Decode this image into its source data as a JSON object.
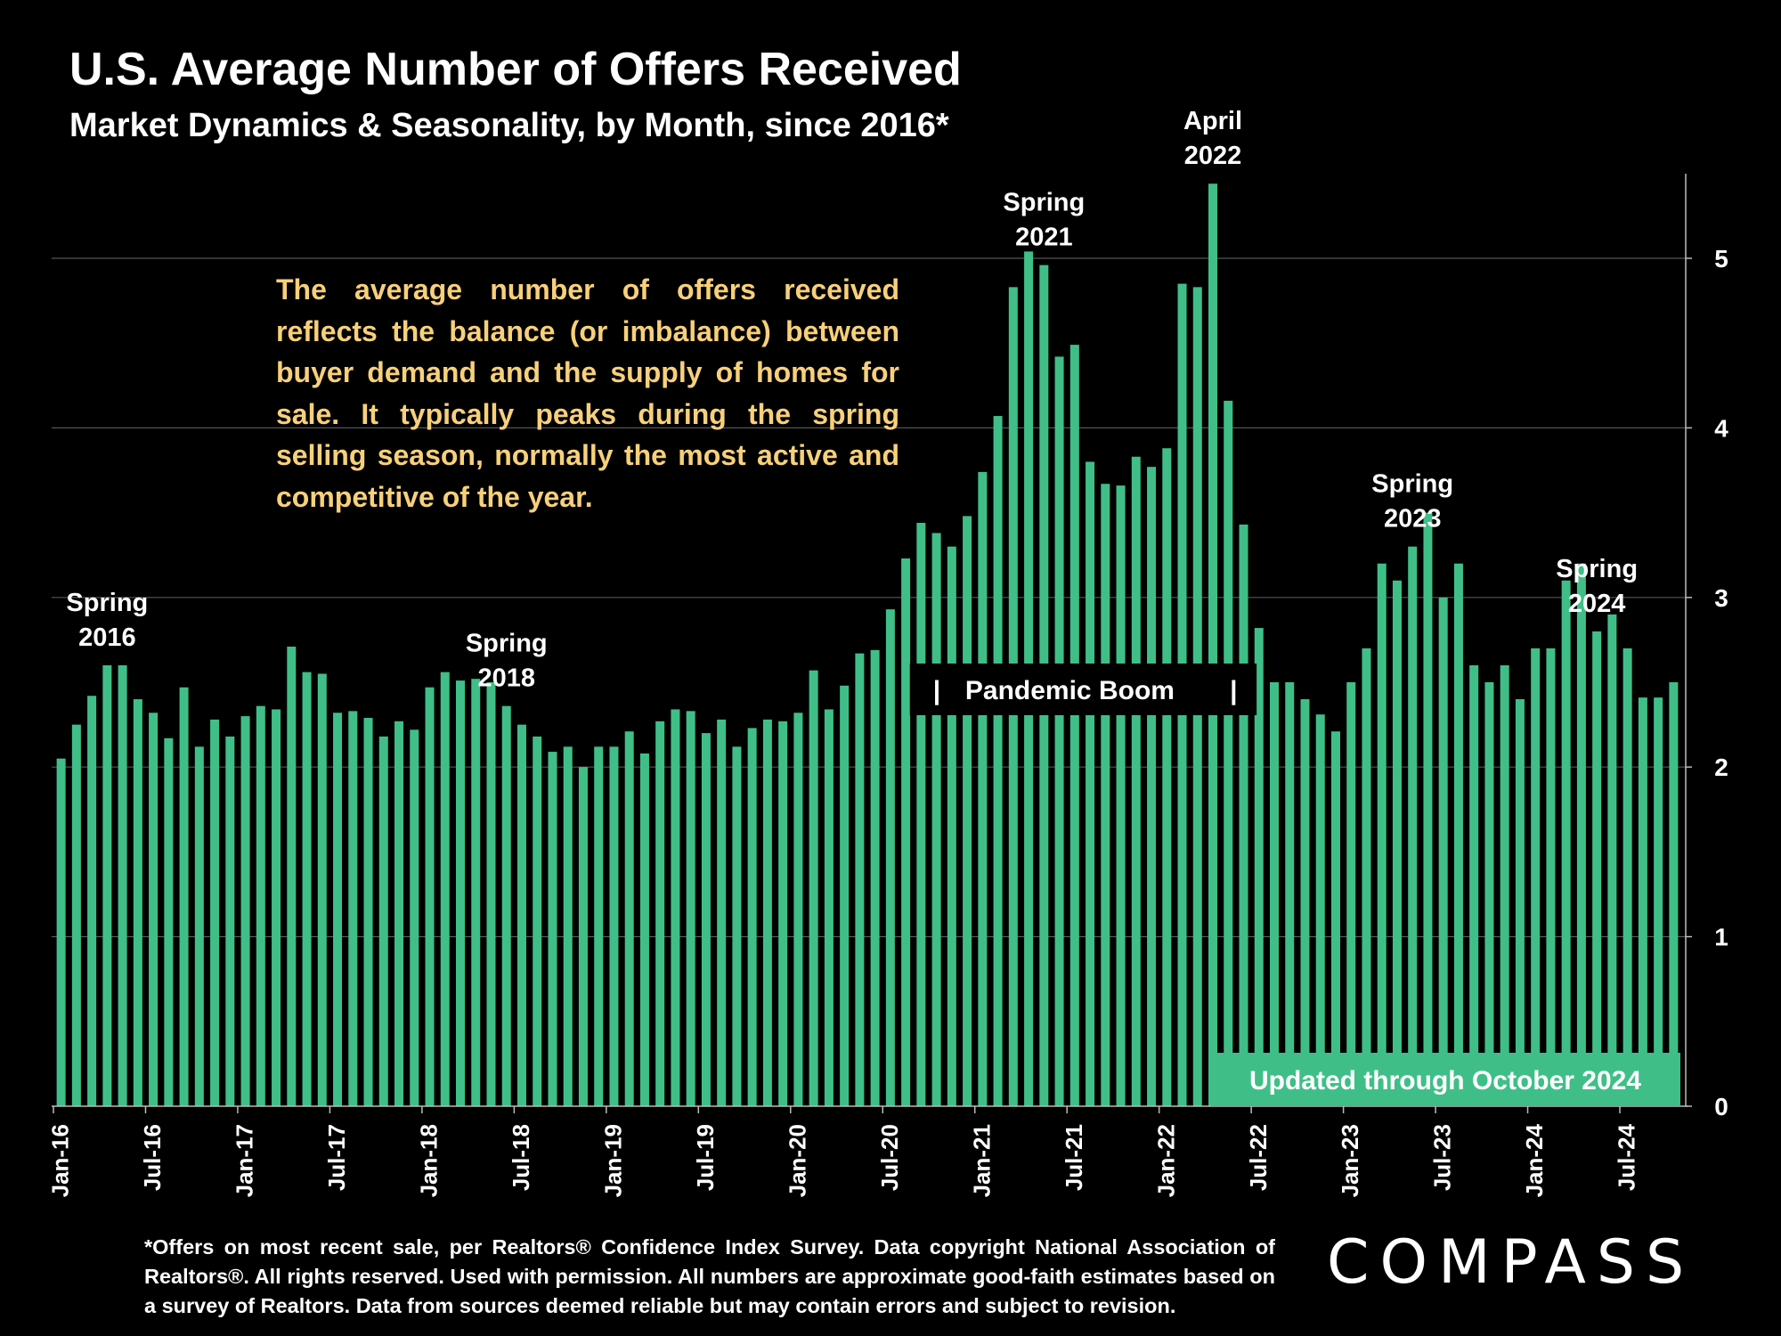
{
  "title": "U.S. Average Number of Offers Received",
  "subtitle": "Market Dynamics & Seasonality, by Month, since 2016*",
  "note": "The average number of offers received reflects the balance (or imbalance) between buyer demand and the supply of homes for sale. It typically peaks during the spring selling season, normally the most active and competitive of the year.",
  "footnote": "*Offers on most recent sale, per Realtors® Confidence Index Survey. Data copyright National Association of Realtors®. All rights reserved. Used with permission. All numbers are approximate good-faith estimates based on a survey of Realtors. Data from sources deemed reliable but may contain errors and subject to revision.",
  "logo": "COMPASS",
  "colors": {
    "bar": "#3fbf87",
    "background": "#000000",
    "note_text": "#f7d07a",
    "grid": "#555555"
  },
  "chart_data": {
    "type": "bar",
    "title": "U.S. Average Number of Offers Received",
    "subtitle": "Market Dynamics & Seasonality, by Month, since 2016*",
    "ylim": [
      0,
      5.5
    ],
    "y_ticks": [
      "0",
      "1",
      "2",
      "3",
      "4",
      "5"
    ],
    "y_axis_side": "right",
    "grid": true,
    "x_tick_labels": [
      "Jan-16",
      "Jul-16",
      "Jan-17",
      "Jul-17",
      "Jan-18",
      "Jul-18",
      "Jan-19",
      "Jul-19",
      "Jan-20",
      "Jul-20",
      "Jan-21",
      "Jul-21",
      "Jan-22",
      "Jul-22",
      "Jan-23",
      "Jul-23",
      "Jan-24",
      "Jul-24"
    ],
    "values": [
      2.05,
      2.25,
      2.42,
      2.6,
      2.6,
      2.4,
      2.32,
      2.17,
      2.47,
      2.12,
      2.28,
      2.18,
      2.3,
      2.36,
      2.34,
      2.71,
      2.56,
      2.55,
      2.32,
      2.33,
      2.29,
      2.18,
      2.27,
      2.22,
      2.47,
      2.56,
      2.51,
      2.52,
      2.5,
      2.36,
      2.25,
      2.18,
      2.09,
      2.12,
      2.0,
      2.12,
      2.12,
      2.21,
      2.08,
      2.27,
      2.34,
      2.33,
      2.2,
      2.28,
      2.12,
      2.23,
      2.28,
      2.27,
      2.32,
      2.57,
      2.34,
      2.48,
      2.67,
      2.69,
      2.93,
      3.23,
      3.44,
      3.38,
      3.3,
      3.48,
      3.74,
      4.07,
      4.83,
      5.04,
      4.96,
      4.42,
      4.49,
      3.8,
      3.67,
      3.66,
      3.83,
      3.77,
      3.88,
      4.85,
      4.83,
      5.44,
      4.16,
      3.43,
      2.82,
      2.5,
      2.5,
      2.4,
      2.31,
      2.21,
      2.5,
      2.7,
      3.2,
      3.1,
      3.3,
      3.5,
      3.0,
      3.2,
      2.6,
      2.5,
      2.6,
      2.4,
      2.7,
      2.7,
      3.1,
      3.2,
      2.8,
      2.9,
      2.7,
      2.41,
      2.41,
      2.5
    ],
    "annotations": [
      {
        "lines": [
          "Spring",
          "2016"
        ],
        "month": 3
      },
      {
        "lines": [
          "Spring",
          "2018"
        ],
        "month": 29
      },
      {
        "lines": [
          "Spring",
          "2021"
        ],
        "month": 64
      },
      {
        "lines": [
          "April",
          "2022"
        ],
        "month": 75
      },
      {
        "lines": [
          "Spring",
          "2023"
        ],
        "month": 88
      },
      {
        "lines": [
          "Spring",
          "2024"
        ],
        "month": 100
      }
    ],
    "period_label": {
      "text": "Pandemic Boom",
      "start_month": 56,
      "end_month": 77
    },
    "status_label": "Updated through October 2024"
  }
}
